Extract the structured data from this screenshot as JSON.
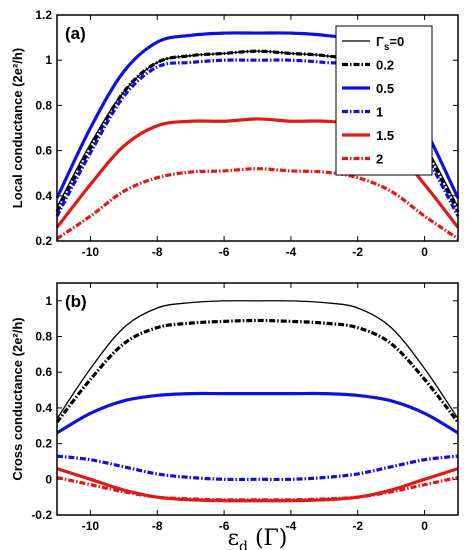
{
  "chart_data": [
    {
      "type": "line",
      "panel": "(a)",
      "ylabel": "Local conductance  (2e²/h)",
      "xlim": [
        -11,
        1
      ],
      "ylim": [
        0.2,
        1.2
      ],
      "xticks": [
        "-10",
        "-8",
        "-6",
        "-4",
        "-2",
        "0"
      ],
      "yticks": [
        "0.2",
        "0.4",
        "0.6",
        "0.8",
        "1",
        "1.2"
      ],
      "x": [
        -11,
        -10,
        -9,
        -8,
        -7,
        -6,
        -5,
        -4,
        -3,
        -2,
        -1,
        0,
        1
      ],
      "legend": {
        "position": "top-right",
        "title_prefix": "Γ",
        "title_sub": "s",
        "title_suffix": "=0"
      },
      "series": [
        {
          "name": "Γs=0",
          "label": "=0",
          "color": "#000000",
          "style": "solid-thin",
          "values": [
            0.35,
            0.63,
            0.86,
            0.99,
            1.02,
            1.03,
            1.04,
            1.03,
            1.02,
            0.99,
            0.86,
            0.63,
            0.35
          ]
        },
        {
          "name": "0.2",
          "label": "0.2",
          "color": "#000000",
          "style": "dashdot",
          "values": [
            0.33,
            0.61,
            0.86,
            0.99,
            1.02,
            1.03,
            1.04,
            1.03,
            1.02,
            0.99,
            0.86,
            0.61,
            0.33
          ]
        },
        {
          "name": "0.5",
          "label": "0.5",
          "color": "#1010dd",
          "style": "solid-thick",
          "values": [
            0.39,
            0.7,
            0.95,
            1.08,
            1.11,
            1.12,
            1.12,
            1.12,
            1.11,
            1.08,
            0.95,
            0.7,
            0.39
          ]
        },
        {
          "name": "1",
          "label": "1",
          "color": "#1010dd",
          "style": "dashdot",
          "values": [
            0.31,
            0.59,
            0.84,
            0.97,
            0.99,
            1.0,
            1.0,
            1.0,
            0.99,
            0.97,
            0.84,
            0.59,
            0.31
          ]
        },
        {
          "name": "1.5",
          "label": "1.5",
          "color": "#e01818",
          "style": "solid-thick",
          "values": [
            0.26,
            0.45,
            0.62,
            0.71,
            0.73,
            0.73,
            0.74,
            0.73,
            0.73,
            0.71,
            0.62,
            0.45,
            0.26
          ]
        },
        {
          "name": "2",
          "label": "2",
          "color": "#e01818",
          "style": "dashdot",
          "values": [
            0.21,
            0.31,
            0.42,
            0.48,
            0.505,
            0.51,
            0.52,
            0.51,
            0.505,
            0.48,
            0.42,
            0.31,
            0.21
          ]
        }
      ]
    },
    {
      "type": "line",
      "panel": "(b)",
      "ylabel": "Cross conductance  (2e²/h)",
      "xlabel": "εd (Γ)",
      "xlabel_main": "ε",
      "xlabel_sub": "d",
      "xlabel_unit": " (Γ)",
      "xlim": [
        -11,
        1
      ],
      "ylim": [
        -0.2,
        1.1
      ],
      "xticks": [
        "-10",
        "-8",
        "-6",
        "-4",
        "-2",
        "0"
      ],
      "yticks": [
        "-0.2",
        "0",
        "0.2",
        "0.4",
        "0.6",
        "0.8",
        "1"
      ],
      "x": [
        -11,
        -10,
        -9,
        -8,
        -7,
        -6,
        -5,
        -4,
        -3,
        -2,
        -1,
        0,
        1
      ],
      "series": [
        {
          "name": "Γs=0",
          "color": "#000000",
          "style": "solid-thin",
          "values": [
            0.34,
            0.62,
            0.85,
            0.96,
            0.99,
            1.0,
            1.0,
            1.0,
            0.99,
            0.96,
            0.85,
            0.62,
            0.34
          ]
        },
        {
          "name": "0.2",
          "color": "#000000",
          "style": "dashdot",
          "values": [
            0.32,
            0.56,
            0.76,
            0.85,
            0.875,
            0.885,
            0.89,
            0.885,
            0.875,
            0.85,
            0.76,
            0.56,
            0.32
          ]
        },
        {
          "name": "0.5",
          "color": "#1010dd",
          "style": "solid-thick",
          "values": [
            0.26,
            0.37,
            0.44,
            0.47,
            0.48,
            0.48,
            0.48,
            0.48,
            0.48,
            0.47,
            0.44,
            0.37,
            0.26
          ]
        },
        {
          "name": "1",
          "color": "#1010dd",
          "style": "dashdot",
          "values": [
            0.13,
            0.11,
            0.07,
            0.03,
            0.01,
            0.0,
            0.0,
            0.0,
            0.01,
            0.03,
            0.07,
            0.11,
            0.13
          ]
        },
        {
          "name": "1.5",
          "color": "#e01818",
          "style": "solid-thick",
          "values": [
            0.06,
            0.0,
            -0.06,
            -0.1,
            -0.115,
            -0.12,
            -0.12,
            -0.12,
            -0.115,
            -0.1,
            -0.06,
            0.0,
            0.06
          ]
        },
        {
          "name": "2",
          "color": "#e01818",
          "style": "dashdot",
          "values": [
            0.01,
            -0.03,
            -0.07,
            -0.1,
            -0.11,
            -0.115,
            -0.115,
            -0.115,
            -0.11,
            -0.1,
            -0.07,
            -0.03,
            0.01
          ]
        }
      ]
    }
  ]
}
